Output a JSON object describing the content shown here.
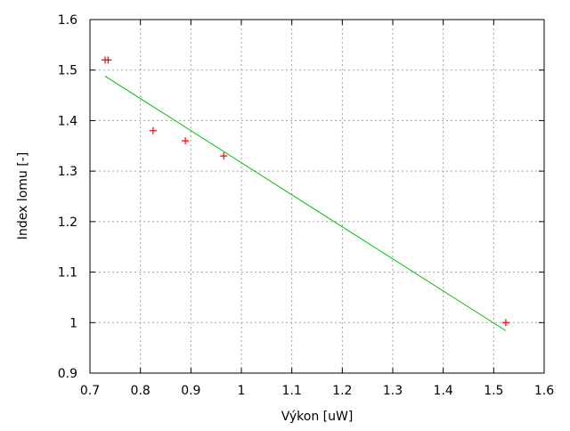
{
  "chart_data": {
    "type": "scatter",
    "xlabel": "Výkon [uW]",
    "ylabel": "Index lomu [-]",
    "xlim": [
      0.7,
      1.6
    ],
    "ylim": [
      0.9,
      1.6
    ],
    "xticks": [
      "0.7",
      "0.8",
      "0.9",
      "1",
      "1.1",
      "1.2",
      "1.3",
      "1.4",
      "1.5",
      "1.6"
    ],
    "yticks": [
      "0.9",
      "1",
      "1.1",
      "1.2",
      "1.3",
      "1.4",
      "1.5",
      "1.6"
    ],
    "grid": true,
    "series": [
      {
        "type": "scatter",
        "marker": "+",
        "color": "#ff0000",
        "x": [
          0.73,
          0.736,
          0.825,
          0.889,
          0.965,
          1.524
        ],
        "y": [
          1.52,
          1.52,
          1.38,
          1.36,
          1.33,
          1.0
        ]
      },
      {
        "type": "line",
        "color": "#00c000",
        "x": [
          0.73,
          1.524
        ],
        "y": [
          1.488,
          0.984
        ]
      }
    ]
  }
}
